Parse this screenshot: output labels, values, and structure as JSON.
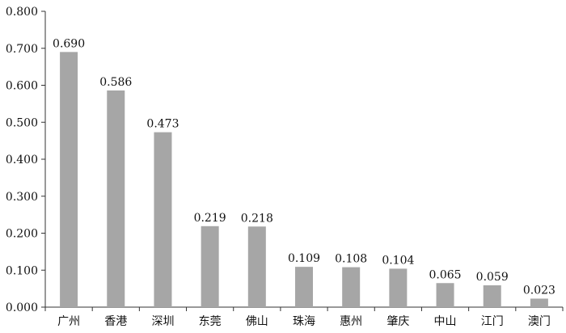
{
  "chart_data": {
    "type": "bar",
    "categories": [
      "广州",
      "香港",
      "深圳",
      "东莞",
      "佛山",
      "珠海",
      "惠州",
      "肇庆",
      "中山",
      "江门",
      "澳门"
    ],
    "values": [
      0.69,
      0.586,
      0.473,
      0.219,
      0.218,
      0.109,
      0.108,
      0.104,
      0.065,
      0.059,
      0.023
    ],
    "data_labels": [
      "0.690",
      "0.586",
      "0.473",
      "0.219",
      "0.218",
      "0.109",
      "0.108",
      "0.104",
      "0.065",
      "0.059",
      "0.023"
    ],
    "y_ticks": [
      0,
      0.1,
      0.2,
      0.3,
      0.4,
      0.5,
      0.6,
      0.7,
      0.8
    ],
    "y_tick_labels": [
      "0.000",
      "0.100",
      "0.200",
      "0.300",
      "0.400",
      "0.500",
      "0.600",
      "0.700",
      "0.800"
    ],
    "ylim": [
      0,
      0.8
    ],
    "title": "",
    "xlabel": "",
    "ylabel": "",
    "grid": false,
    "legend": "none",
    "bar_color": "#a6a6a6",
    "axis_color": "#333333"
  }
}
